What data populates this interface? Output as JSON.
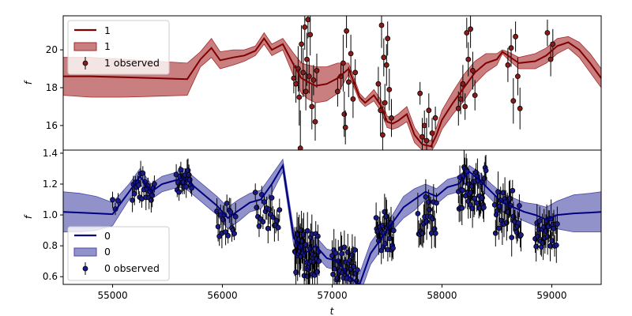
{
  "chart_data": [
    {
      "type": "line",
      "panel": "top",
      "xlabel": "",
      "ylabel": "f",
      "xlim": [
        54550,
        59450
      ],
      "ylim": [
        14.7,
        21.8
      ],
      "yticks": [
        16,
        18,
        20
      ],
      "colors": {
        "line": "#7f0000",
        "band": "#a52a2a",
        "points": "#8b1a1a"
      },
      "legend": {
        "placement": "upper-left",
        "entries": [
          {
            "kind": "line",
            "label": "1"
          },
          {
            "kind": "band",
            "label": "1"
          },
          {
            "kind": "errorbar",
            "label": "1 observed"
          }
        ]
      },
      "model": {
        "x": [
          54550,
          54800,
          55100,
          55400,
          55680,
          55800,
          55900,
          55980,
          56100,
          56200,
          56300,
          56380,
          56450,
          56550,
          56650,
          56720,
          56780,
          56850,
          56950,
          57050,
          57150,
          57250,
          57300,
          57380,
          57450,
          57500,
          57550,
          57600,
          57680,
          57750,
          57820,
          57900,
          57950,
          58000,
          58100,
          58200,
          58300,
          58400,
          58500,
          58550,
          58600,
          58700,
          58850,
          58950,
          59050,
          59150,
          59250,
          59350,
          59450
        ],
        "mean": [
          18.6,
          18.6,
          18.55,
          18.5,
          18.45,
          19.5,
          20.1,
          19.45,
          19.6,
          19.7,
          19.95,
          20.6,
          20.0,
          20.3,
          19.2,
          18.5,
          18.3,
          18.1,
          18.2,
          18.5,
          19.0,
          17.5,
          17.2,
          17.6,
          17.0,
          16.2,
          16.1,
          16.25,
          16.6,
          15.5,
          15.0,
          14.9,
          15.5,
          16.3,
          17.2,
          18.0,
          18.8,
          19.3,
          19.5,
          19.9,
          19.7,
          19.3,
          19.4,
          19.7,
          20.2,
          20.4,
          20.0,
          19.3,
          18.5
        ],
        "upper": [
          19.6,
          19.6,
          19.5,
          19.4,
          19.3,
          19.9,
          20.6,
          19.9,
          20.0,
          20.0,
          20.2,
          20.9,
          20.3,
          20.6,
          19.8,
          19.3,
          19.2,
          19.1,
          19.1,
          19.3,
          19.3,
          17.7,
          17.4,
          17.9,
          17.3,
          16.5,
          16.4,
          16.6,
          17.0,
          15.9,
          15.3,
          15.2,
          15.9,
          16.8,
          17.8,
          18.7,
          19.4,
          19.8,
          19.8,
          20.0,
          19.9,
          19.6,
          19.8,
          20.1,
          20.6,
          20.7,
          20.4,
          19.8,
          19.0
        ],
        "lower": [
          17.6,
          17.5,
          17.5,
          17.55,
          17.6,
          19.1,
          19.6,
          19.0,
          19.2,
          19.4,
          19.7,
          20.3,
          19.7,
          20.0,
          18.6,
          17.7,
          17.4,
          17.2,
          17.3,
          17.7,
          18.7,
          17.3,
          17.0,
          17.3,
          16.7,
          15.9,
          15.8,
          15.9,
          16.2,
          15.1,
          14.7,
          14.6,
          15.1,
          15.8,
          16.6,
          17.3,
          18.2,
          18.8,
          19.2,
          19.8,
          19.5,
          19.0,
          19.0,
          19.3,
          19.8,
          20.1,
          19.6,
          18.8,
          18.0
        ]
      },
      "observed": [
        {
          "x": 56650,
          "y": 18.5,
          "err": 0.8
        },
        {
          "x": 56670,
          "y": 18.2,
          "err": 1.0
        },
        {
          "x": 56690,
          "y": 19.0,
          "err": 1.2
        },
        {
          "x": 56700,
          "y": 17.5,
          "err": 1.5
        },
        {
          "x": 56710,
          "y": 14.8,
          "err": 2.0
        },
        {
          "x": 56720,
          "y": 20.3,
          "err": 1.0
        },
        {
          "x": 56735,
          "y": 18.8,
          "err": 1.3
        },
        {
          "x": 56750,
          "y": 21.2,
          "err": 1.2
        },
        {
          "x": 56760,
          "y": 17.8,
          "err": 1.0
        },
        {
          "x": 56770,
          "y": 19.5,
          "err": 1.4
        },
        {
          "x": 56780,
          "y": 21.6,
          "err": 1.0
        },
        {
          "x": 56790,
          "y": 18.6,
          "err": 0.9
        },
        {
          "x": 56800,
          "y": 20.8,
          "err": 1.1
        },
        {
          "x": 56815,
          "y": 17.0,
          "err": 1.2
        },
        {
          "x": 56830,
          "y": 18.4,
          "err": 0.8
        },
        {
          "x": 56845,
          "y": 16.2,
          "err": 1.0
        },
        {
          "x": 56860,
          "y": 18.9,
          "err": 0.9
        },
        {
          "x": 57050,
          "y": 17.8,
          "err": 0.8
        },
        {
          "x": 57080,
          "y": 18.6,
          "err": 0.7
        },
        {
          "x": 57100,
          "y": 19.3,
          "err": 1.5
        },
        {
          "x": 57110,
          "y": 16.6,
          "err": 1.2
        },
        {
          "x": 57120,
          "y": 15.9,
          "err": 0.9
        },
        {
          "x": 57130,
          "y": 21.0,
          "err": 0.9
        },
        {
          "x": 57150,
          "y": 18.3,
          "err": 0.8
        },
        {
          "x": 57170,
          "y": 19.8,
          "err": 1.0
        },
        {
          "x": 57190,
          "y": 17.4,
          "err": 1.0
        },
        {
          "x": 57210,
          "y": 18.8,
          "err": 0.7
        },
        {
          "x": 57420,
          "y": 18.2,
          "err": 0.9
        },
        {
          "x": 57440,
          "y": 16.8,
          "err": 1.3
        },
        {
          "x": 57450,
          "y": 21.3,
          "err": 1.2
        },
        {
          "x": 57460,
          "y": 15.5,
          "err": 1.5
        },
        {
          "x": 57470,
          "y": 19.6,
          "err": 1.0
        },
        {
          "x": 57480,
          "y": 17.2,
          "err": 1.0
        },
        {
          "x": 57495,
          "y": 19.2,
          "err": 1.1
        },
        {
          "x": 57505,
          "y": 20.6,
          "err": 0.9
        },
        {
          "x": 57520,
          "y": 17.9,
          "err": 1.1
        },
        {
          "x": 57540,
          "y": 16.4,
          "err": 1.0
        },
        {
          "x": 57800,
          "y": 17.7,
          "err": 0.6
        },
        {
          "x": 57820,
          "y": 15.4,
          "err": 1.0
        },
        {
          "x": 57840,
          "y": 16.0,
          "err": 0.8
        },
        {
          "x": 57860,
          "y": 15.2,
          "err": 1.2
        },
        {
          "x": 57880,
          "y": 16.8,
          "err": 0.9
        },
        {
          "x": 57910,
          "y": 15.6,
          "err": 0.8
        },
        {
          "x": 57940,
          "y": 16.4,
          "err": 0.6
        },
        {
          "x": 58150,
          "y": 16.9,
          "err": 0.9
        },
        {
          "x": 58170,
          "y": 17.4,
          "err": 0.8
        },
        {
          "x": 58190,
          "y": 18.2,
          "err": 1.0
        },
        {
          "x": 58210,
          "y": 17.0,
          "err": 0.7
        },
        {
          "x": 58225,
          "y": 20.9,
          "err": 0.8
        },
        {
          "x": 58240,
          "y": 19.5,
          "err": 0.9
        },
        {
          "x": 58260,
          "y": 21.1,
          "err": 1.0
        },
        {
          "x": 58280,
          "y": 18.9,
          "err": 1.0
        },
        {
          "x": 58300,
          "y": 17.6,
          "err": 0.8
        },
        {
          "x": 58600,
          "y": 19.2,
          "err": 0.9
        },
        {
          "x": 58630,
          "y": 20.1,
          "err": 1.0
        },
        {
          "x": 58650,
          "y": 17.3,
          "err": 1.2
        },
        {
          "x": 58670,
          "y": 20.7,
          "err": 0.8
        },
        {
          "x": 58690,
          "y": 18.6,
          "err": 1.0
        },
        {
          "x": 58710,
          "y": 16.9,
          "err": 1.1
        },
        {
          "x": 58960,
          "y": 20.9,
          "err": 0.7
        },
        {
          "x": 58990,
          "y": 19.5,
          "err": 0.9
        },
        {
          "x": 59010,
          "y": 20.3,
          "err": 0.8
        }
      ]
    },
    {
      "type": "line",
      "panel": "bottom",
      "xlabel": "t",
      "ylabel": "f",
      "xlim": [
        54550,
        59450
      ],
      "ylim": [
        0.55,
        1.42
      ],
      "xticks": [
        55000,
        56000,
        57000,
        58000,
        59000
      ],
      "yticks": [
        0.6,
        0.8,
        1.0,
        1.2,
        1.4
      ],
      "colors": {
        "line": "#00007f",
        "band": "#4a4aa8",
        "points": "#1a1a8c"
      },
      "legend": {
        "placement": "lower-left",
        "entries": [
          {
            "kind": "line",
            "label": "0"
          },
          {
            "kind": "band",
            "label": "0"
          },
          {
            "kind": "errorbar",
            "label": "0 observed"
          }
        ]
      },
      "model": {
        "x": [
          54550,
          54700,
          54850,
          55000,
          55150,
          55250,
          55350,
          55450,
          55550,
          55650,
          55750,
          55850,
          55950,
          56050,
          56150,
          56250,
          56350,
          56450,
          56550,
          56650,
          56750,
          56850,
          56950,
          57050,
          57150,
          57250,
          57350,
          57450,
          57550,
          57650,
          57750,
          57850,
          57950,
          58050,
          58150,
          58250,
          58350,
          58450,
          58550,
          58650,
          58750,
          58850,
          58950,
          59050,
          59200,
          59350,
          59450
        ],
        "mean": [
          1.02,
          1.015,
          1.01,
          1.005,
          1.15,
          1.25,
          1.15,
          1.2,
          1.22,
          1.24,
          1.18,
          1.12,
          1.06,
          0.98,
          1.03,
          1.08,
          1.1,
          1.2,
          1.32,
          0.85,
          0.75,
          0.8,
          0.72,
          0.7,
          0.6,
          0.55,
          0.75,
          0.85,
          0.95,
          1.05,
          1.1,
          1.15,
          1.12,
          1.18,
          1.2,
          1.28,
          1.22,
          1.15,
          1.08,
          1.05,
          1.02,
          1.0,
          0.97,
          1.0,
          1.01,
          1.015,
          1.02
        ],
        "upper": [
          1.15,
          1.14,
          1.12,
          1.08,
          1.2,
          1.3,
          1.2,
          1.25,
          1.27,
          1.3,
          1.24,
          1.18,
          1.12,
          1.05,
          1.1,
          1.14,
          1.16,
          1.26,
          1.36,
          0.9,
          0.8,
          0.86,
          0.78,
          0.76,
          0.66,
          0.62,
          0.82,
          0.92,
          1.0,
          1.12,
          1.17,
          1.2,
          1.17,
          1.23,
          1.25,
          1.32,
          1.27,
          1.2,
          1.14,
          1.11,
          1.08,
          1.07,
          1.05,
          1.09,
          1.13,
          1.14,
          1.15
        ],
        "lower": [
          0.89,
          0.89,
          0.9,
          0.93,
          1.1,
          1.2,
          1.1,
          1.15,
          1.17,
          1.18,
          1.12,
          1.06,
          1.0,
          0.91,
          0.96,
          1.02,
          1.04,
          1.14,
          1.28,
          0.8,
          0.7,
          0.74,
          0.66,
          0.64,
          0.54,
          0.48,
          0.68,
          0.78,
          0.9,
          0.98,
          1.03,
          1.1,
          1.07,
          1.13,
          1.15,
          1.24,
          1.17,
          1.1,
          1.02,
          0.99,
          0.96,
          0.93,
          0.89,
          0.91,
          0.89,
          0.89,
          0.89
        ]
      },
      "observed_groups": [
        {
          "x_start": 55000,
          "x_end": 55050,
          "n": 3,
          "center": 1.1,
          "spread": 0.08,
          "err": 0.05
        },
        {
          "x_start": 55180,
          "x_end": 55380,
          "n": 22,
          "center": 1.18,
          "spread": 0.1,
          "err": 0.06
        },
        {
          "x_start": 55580,
          "x_end": 55720,
          "n": 18,
          "center": 1.22,
          "spread": 0.08,
          "err": 0.06
        },
        {
          "x_start": 55950,
          "x_end": 56120,
          "n": 16,
          "center": 0.98,
          "spread": 0.12,
          "err": 0.07
        },
        {
          "x_start": 56300,
          "x_end": 56520,
          "n": 20,
          "center": 1.05,
          "spread": 0.14,
          "err": 0.08
        },
        {
          "x_start": 56660,
          "x_end": 56880,
          "n": 45,
          "center": 0.75,
          "spread": 0.16,
          "err": 0.12
        },
        {
          "x_start": 57000,
          "x_end": 57230,
          "n": 30,
          "center": 0.68,
          "spread": 0.12,
          "err": 0.1
        },
        {
          "x_start": 57400,
          "x_end": 57560,
          "n": 28,
          "center": 0.9,
          "spread": 0.13,
          "err": 0.09
        },
        {
          "x_start": 57780,
          "x_end": 57950,
          "n": 20,
          "center": 1.0,
          "spread": 0.15,
          "err": 0.1
        },
        {
          "x_start": 58150,
          "x_end": 58400,
          "n": 40,
          "center": 1.18,
          "spread": 0.14,
          "err": 0.09
        },
        {
          "x_start": 58480,
          "x_end": 58720,
          "n": 32,
          "center": 1.0,
          "spread": 0.16,
          "err": 0.1
        },
        {
          "x_start": 58850,
          "x_end": 59050,
          "n": 26,
          "center": 0.88,
          "spread": 0.1,
          "err": 0.09
        }
      ]
    }
  ]
}
